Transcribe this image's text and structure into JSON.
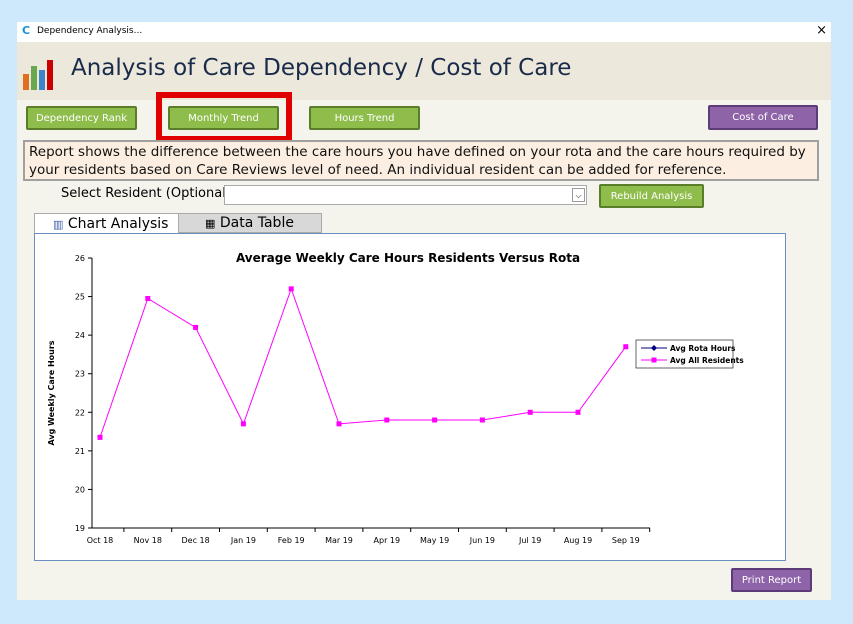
{
  "window": {
    "title": "Dependency Analysis...",
    "close": "×"
  },
  "header": {
    "title": "Analysis of Care Dependency / Cost of Care"
  },
  "buttons": {
    "dependency_rank": "Dependency Rank",
    "monthly_trend": "Monthly Trend",
    "hours_trend": "Hours Trend",
    "cost_of_care": "Cost of Care",
    "rebuild": "Rebuild Analysis",
    "print": "Print Report"
  },
  "description": "Report shows the difference between the care hours you have defined on your rota and the care hours required by your residents based on Care Reviews level of need.  An individual resident can be added for reference.",
  "select": {
    "label": "Select Resident (Optional):"
  },
  "tabs": [
    "Chart Analysis",
    "Data Table"
  ],
  "chart_data": {
    "type": "line",
    "title": "Average Weekly Care Hours Residents Versus Rota",
    "y_label": "Avg Weekly Care Hours",
    "categories": [
      "Oct 18",
      "Nov 18",
      "Dec 18",
      "Jan 19",
      "Feb 19",
      "Mar 19",
      "Apr 19",
      "May 19",
      "Jun 19",
      "Jul 19",
      "Aug 19",
      "Sep 19"
    ],
    "series": [
      {
        "name": "Avg Rota Hours",
        "color": "#000080",
        "values": [
          null,
          null,
          null,
          null,
          null,
          null,
          null,
          null,
          null,
          null,
          null,
          null
        ]
      },
      {
        "name": "Avg All Residents",
        "color": "#ff00ff",
        "values": [
          21.35,
          24.95,
          24.2,
          21.7,
          25.2,
          21.7,
          21.8,
          21.8,
          21.8,
          22.0,
          22.0,
          23.7
        ]
      }
    ],
    "ylim": [
      19,
      26
    ],
    "yticks": [
      19,
      20,
      21,
      22,
      23,
      24,
      25,
      26
    ],
    "legend": "right"
  }
}
